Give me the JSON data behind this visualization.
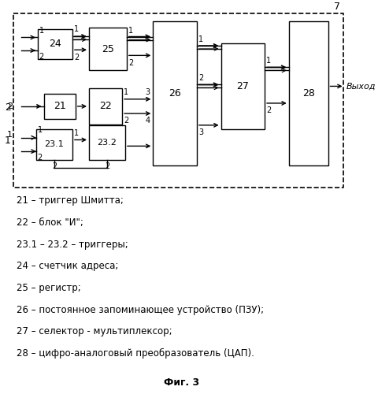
{
  "title": "Фиг. 3",
  "legend_lines": [
    "21 – триггер Шмитта;",
    "22 – блок \"И\";",
    "23.1 – 23.2 – триггеры;",
    "24 – счетчик адреса;",
    "25 – регистр;",
    "26 – постоянное запоминающее устройство (ПЗУ);",
    "27 – селектор - мультиплексор;",
    "28 – цифро-аналоговый преобразователь (ЦАП)."
  ],
  "background": "#ffffff",
  "box_edge": "#000000"
}
